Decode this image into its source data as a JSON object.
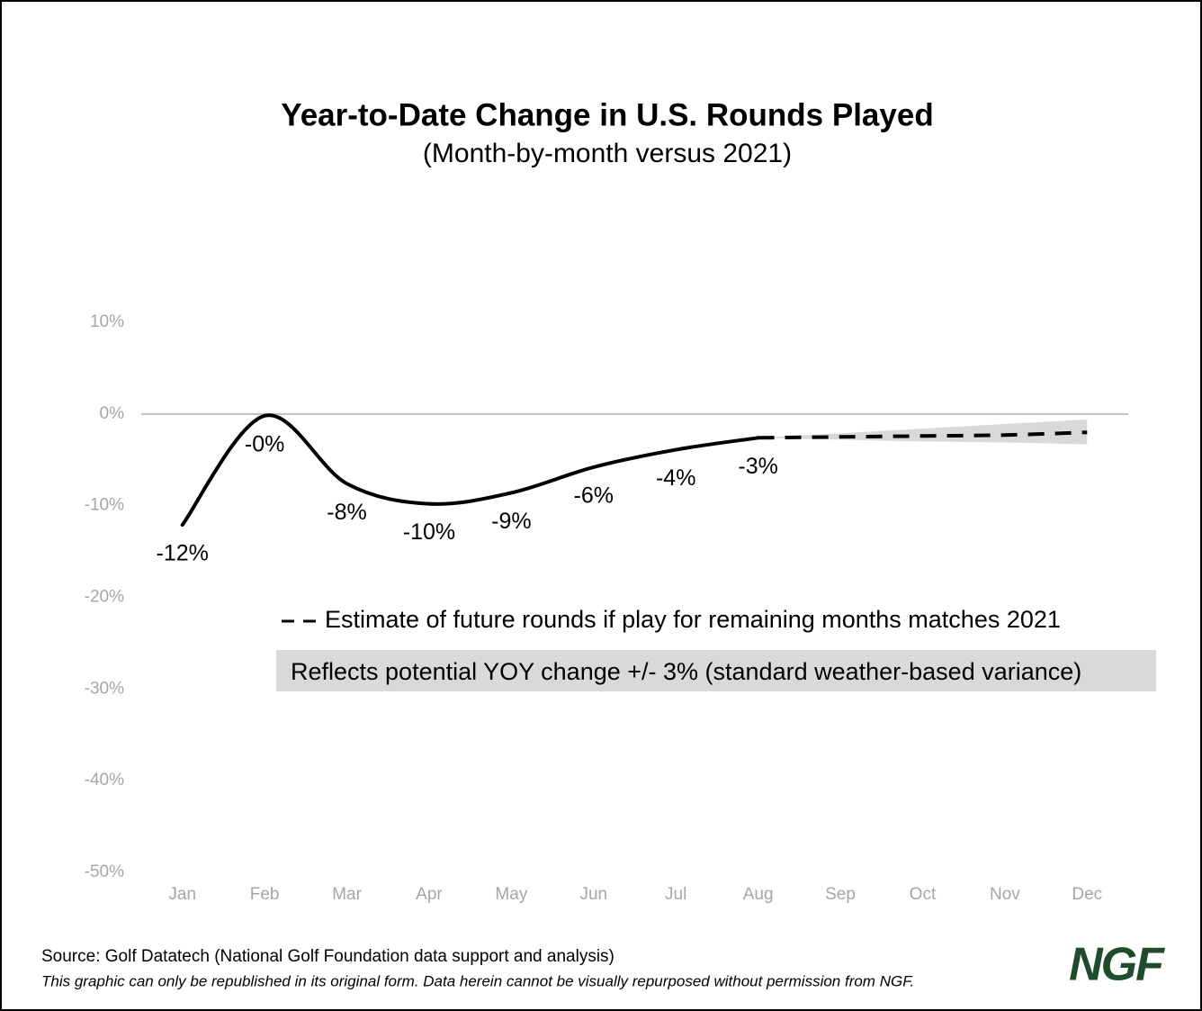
{
  "chart_data": {
    "type": "line",
    "title": "Year-to-Date Change in U.S. Rounds Played",
    "subtitle": "(Month-by-month versus 2021)",
    "categories": [
      "Jan",
      "Feb",
      "Mar",
      "Apr",
      "May",
      "Jun",
      "Jul",
      "Aug",
      "Sep",
      "Oct",
      "Nov",
      "Dec"
    ],
    "series": [
      {
        "color": "#000000",
        "values": [
          -12.1,
          -0.2,
          -7.6,
          -9.8,
          -8.6,
          -5.8,
          -3.9,
          -2.6,
          null,
          null,
          null,
          null
        ],
        "value_labels": [
          "-12%",
          "-0%",
          "-8%",
          "-10%",
          "-9%",
          "-6%",
          "-4%",
          "-3%",
          null,
          null,
          null,
          null
        ]
      },
      {
        "name": "Estimate of future rounds if play for remaining months matches 2021",
        "color": "#000000",
        "dashed": true,
        "values": [
          null,
          null,
          null,
          null,
          null,
          null,
          null,
          -2.6,
          -2.5,
          -2.4,
          -2.3,
          -2.0
        ]
      }
    ],
    "band": {
      "name": "Reflects potential YOY change +/- 3% (standard weather-based variance)",
      "color": "#d9d9d9",
      "lower": [
        null,
        null,
        null,
        null,
        null,
        null,
        null,
        -2.6,
        -2.8,
        -3.0,
        -3.1,
        -3.3
      ],
      "upper": [
        null,
        null,
        null,
        null,
        null,
        null,
        null,
        -2.6,
        -2.1,
        -1.6,
        -1.1,
        -0.6
      ]
    },
    "ylim": [
      -50,
      10
    ],
    "yticks": [
      {
        "value": 10,
        "label": "10%"
      },
      {
        "value": 0,
        "label": "0%"
      },
      {
        "value": -10,
        "label": "-10%"
      },
      {
        "value": -20,
        "label": "-20%"
      },
      {
        "value": -30,
        "label": "-30%"
      },
      {
        "value": -40,
        "label": "-40%"
      },
      {
        "value": -50,
        "label": "-50%"
      }
    ],
    "zero_line": true,
    "source": "Source: Golf Datatech (National Golf Foundation data support and analysis)",
    "footnote": "This graphic can only be republished in its original form. Data herein cannot be visually repurposed without permission from NGF.",
    "logo": "NGF"
  }
}
